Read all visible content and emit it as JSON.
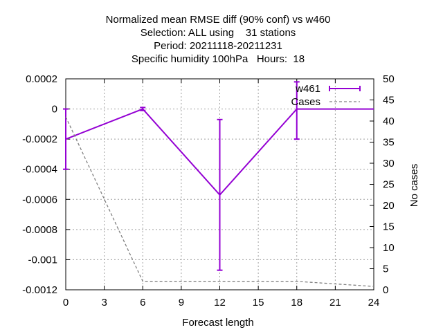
{
  "chart_data": {
    "type": "line",
    "title_lines": [
      "Normalized mean RMSE diff (90% conf) vs w460",
      "Selection: ALL using    31 stations",
      "Period: 20211118-20211231",
      "Specific humidity 100hPa   Hours:  18"
    ],
    "xlabel": "Forecast length",
    "ylabel": "",
    "y2label": "No cases",
    "xlim": [
      0,
      24
    ],
    "ylim": [
      -0.0012,
      0.0002
    ],
    "y2lim": [
      0,
      50
    ],
    "grid": true,
    "legend_position": "top-right",
    "x_ticks": [
      "0",
      "3",
      "6",
      "9",
      "12",
      "15",
      "18",
      "21",
      "24"
    ],
    "y_ticks": [
      "0.0002",
      "0",
      "-0.0002",
      "-0.0004",
      "-0.0006",
      "-0.0008",
      "-0.001",
      "-0.0012"
    ],
    "y2_ticks": [
      "50",
      "45",
      "40",
      "35",
      "30",
      "25",
      "20",
      "15",
      "10",
      "5",
      "0"
    ],
    "series": [
      {
        "name": "w461",
        "axis": "y",
        "color": "#9400d3",
        "x": [
          0,
          6,
          12,
          18,
          24
        ],
        "y": [
          -0.0002,
          0.0,
          -0.00057,
          -0.0,
          -0.0
        ],
        "err_low": [
          -0.0004,
          -1e-05,
          -0.00107,
          -0.0002,
          null
        ],
        "err_high": [
          0.0,
          1e-05,
          -7e-05,
          0.00018,
          null
        ]
      },
      {
        "name": "Cases",
        "axis": "y2",
        "color": "#808080",
        "dashed": true,
        "x": [
          0,
          6,
          12,
          18,
          24
        ],
        "y": [
          41,
          2,
          2,
          2,
          0.8
        ]
      }
    ]
  }
}
